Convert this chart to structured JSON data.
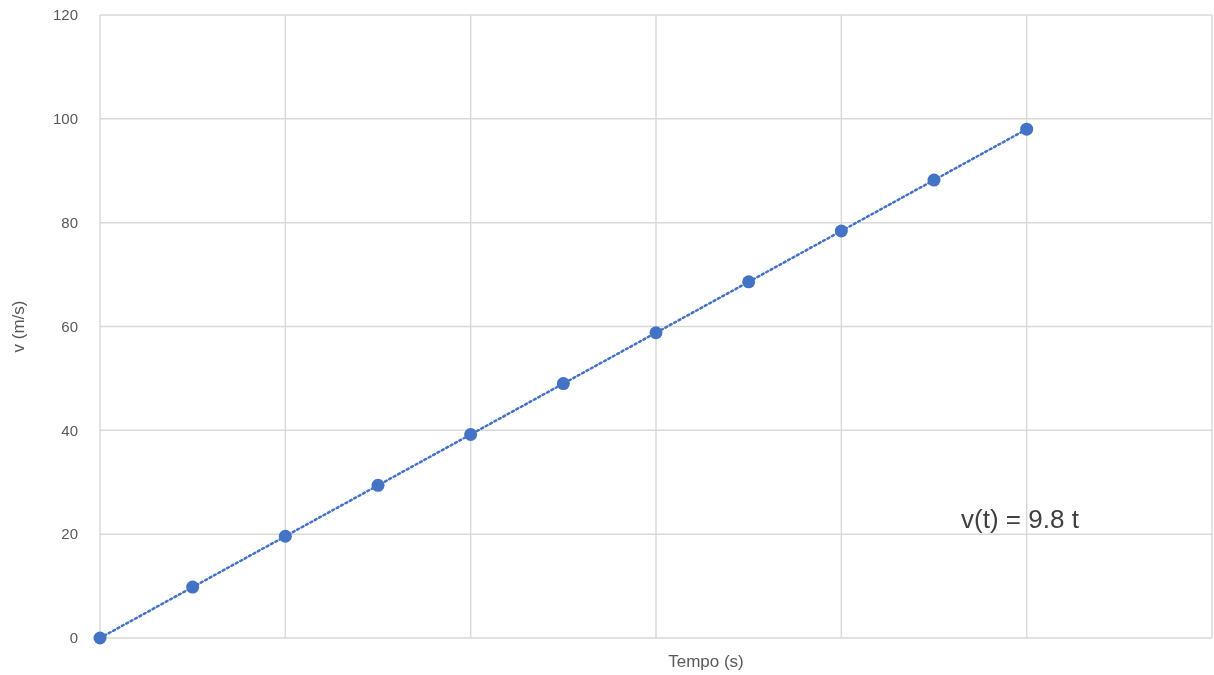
{
  "chart_data": {
    "type": "line",
    "xlabel": "Tempo (s)",
    "ylabel": "v (m/s)",
    "categories": [
      null,
      null,
      null,
      null,
      null,
      null,
      null,
      null,
      null,
      null,
      null
    ],
    "series": [
      {
        "color": "#4472c4",
        "values": [
          0,
          9.8,
          19.6,
          29.4,
          39.2,
          49,
          58.8,
          68.6,
          78.4,
          88.2,
          98
        ]
      }
    ],
    "ylim": [
      0,
      120
    ],
    "yticks": [
      0,
      20,
      40,
      60,
      80,
      100,
      120
    ],
    "grid": true,
    "marker": "circle",
    "line_style": "dotted",
    "tick_labels": "y",
    "annotations": [
      "v(t) = 9.8 t"
    ]
  }
}
